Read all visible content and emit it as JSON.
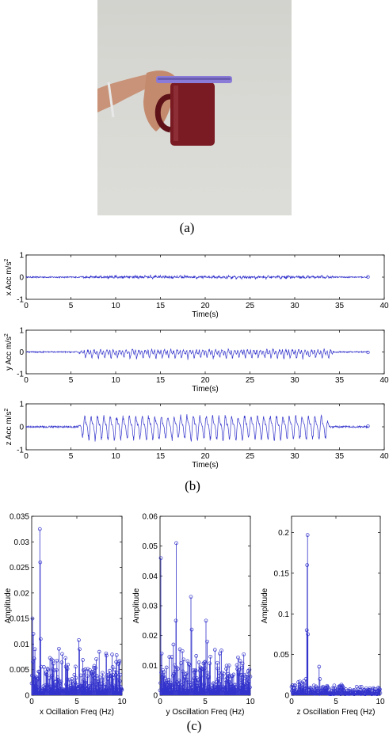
{
  "captions": {
    "a": "(a)",
    "b": "(b)",
    "c": "(c)"
  },
  "colors": {
    "signal": "#3333cc",
    "axis": "#000000",
    "photo_wall": "#d7d7d3",
    "mug": "#7a1a22",
    "phone": "#8b7bd8"
  },
  "chart_data": [
    {
      "id": "x-acc",
      "type": "line",
      "ylabel": "x Acc m/s",
      "ylabel_sup": "2",
      "xlabel": "Time(s)",
      "xlim": [
        0,
        40
      ],
      "ylim": [
        -1,
        1
      ],
      "xticks": [
        0,
        5,
        10,
        15,
        20,
        25,
        30,
        35,
        40
      ],
      "yticks": [
        -1,
        0,
        1
      ],
      "signal": {
        "t_start": 0.0,
        "t_end": 38.2,
        "active_start": 6.0,
        "active_end": 34.5,
        "freq_hz": 1.4,
        "peak_amplitude": 0.22,
        "baseline_noise": 0.03
      }
    },
    {
      "id": "y-acc",
      "type": "line",
      "ylabel": "y Acc m/s",
      "ylabel_sup": "2",
      "xlabel": "Time(s)",
      "xlim": [
        0,
        40
      ],
      "ylim": [
        -1,
        1
      ],
      "xticks": [
        0,
        5,
        10,
        15,
        20,
        25,
        30,
        35,
        40
      ],
      "yticks": [
        -1,
        0,
        1
      ],
      "signal": {
        "t_start": 0.0,
        "t_end": 38.2,
        "active_start": 5.8,
        "active_end": 34.5,
        "freq_hz": 1.4,
        "peak_amplitude": 0.5,
        "baseline_noise": 0.03
      }
    },
    {
      "id": "z-acc",
      "type": "line",
      "ylabel": "z Acc m/s",
      "ylabel_sup": "2",
      "xlabel": "Time(s)",
      "xlim": [
        0,
        40
      ],
      "ylim": [
        -1,
        1
      ],
      "xticks": [
        0,
        5,
        10,
        15,
        20,
        25,
        30,
        35,
        40
      ],
      "yticks": [
        -1,
        0,
        1
      ],
      "signal": {
        "t_start": 0.0,
        "t_end": 38.2,
        "active_start": 5.8,
        "active_end": 34.0,
        "freq_hz": 1.4,
        "peak_amplitude": 0.72,
        "baseline_noise": 0.04
      }
    },
    {
      "id": "x-fft",
      "type": "scatter",
      "ylabel": "Amplitude",
      "xlabel": "x Ocillation Freq (Hz)",
      "xlim": [
        0,
        10
      ],
      "ylim": [
        0,
        0.035
      ],
      "xticks": [
        0,
        5,
        10
      ],
      "yticks": [
        0,
        0.005,
        0.01,
        0.015,
        0.02,
        0.025,
        0.03,
        0.035
      ],
      "ytick_labels": [
        "0",
        "0.005",
        "0.01",
        "0.015",
        "0.02",
        "0.025",
        "0.03",
        "0.035"
      ],
      "noise_level": 0.004,
      "peaks": [
        [
          0.1,
          0.015
        ],
        [
          0.2,
          0.012
        ],
        [
          0.35,
          0.009
        ],
        [
          0.9,
          0.0325
        ],
        [
          0.95,
          0.026
        ],
        [
          1.0,
          0.011
        ],
        [
          5.2,
          0.0108
        ],
        [
          5.3,
          0.009
        ],
        [
          2.2,
          0.007
        ],
        [
          4.0,
          0.006
        ]
      ]
    },
    {
      "id": "y-fft",
      "type": "scatter",
      "ylabel": "Amplitude",
      "xlabel": "y Oscillation Freq (Hz)",
      "xlim": [
        0,
        10
      ],
      "ylim": [
        0,
        0.06
      ],
      "xticks": [
        0,
        5,
        10
      ],
      "yticks": [
        0,
        0.01,
        0.02,
        0.03,
        0.04,
        0.05,
        0.06
      ],
      "ytick_labels": [
        "0",
        "0.01",
        "0.02",
        "0.03",
        "0.04",
        "0.05",
        "0.06"
      ],
      "noise_level": 0.007,
      "peaks": [
        [
          0.1,
          0.046
        ],
        [
          0.2,
          0.014
        ],
        [
          1.5,
          0.017
        ],
        [
          1.75,
          0.025
        ],
        [
          1.8,
          0.051
        ],
        [
          3.4,
          0.033
        ],
        [
          3.5,
          0.022
        ],
        [
          5.1,
          0.025
        ],
        [
          5.2,
          0.018
        ],
        [
          6.8,
          0.015
        ],
        [
          2.6,
          0.012
        ],
        [
          4.3,
          0.011
        ]
      ]
    },
    {
      "id": "z-fft",
      "type": "scatter",
      "ylabel": "Amplitude",
      "xlabel": "z Oscillation Freq (Hz)",
      "xlim": [
        0,
        10
      ],
      "ylim": [
        0,
        0.22
      ],
      "xticks": [
        0,
        5,
        10
      ],
      "yticks": [
        0,
        0.05,
        0.1,
        0.15,
        0.2
      ],
      "ytick_labels": [
        "0",
        "0.05",
        "0.1",
        "0.15",
        "0.2"
      ],
      "noise_level": 0.006,
      "peaks": [
        [
          1.6,
          0.02
        ],
        [
          1.7,
          0.08
        ],
        [
          1.75,
          0.16
        ],
        [
          1.8,
          0.197
        ],
        [
          1.85,
          0.075
        ],
        [
          3.1,
          0.035
        ],
        [
          3.2,
          0.02
        ],
        [
          4.8,
          0.012
        ],
        [
          2.5,
          0.012
        ]
      ]
    }
  ]
}
